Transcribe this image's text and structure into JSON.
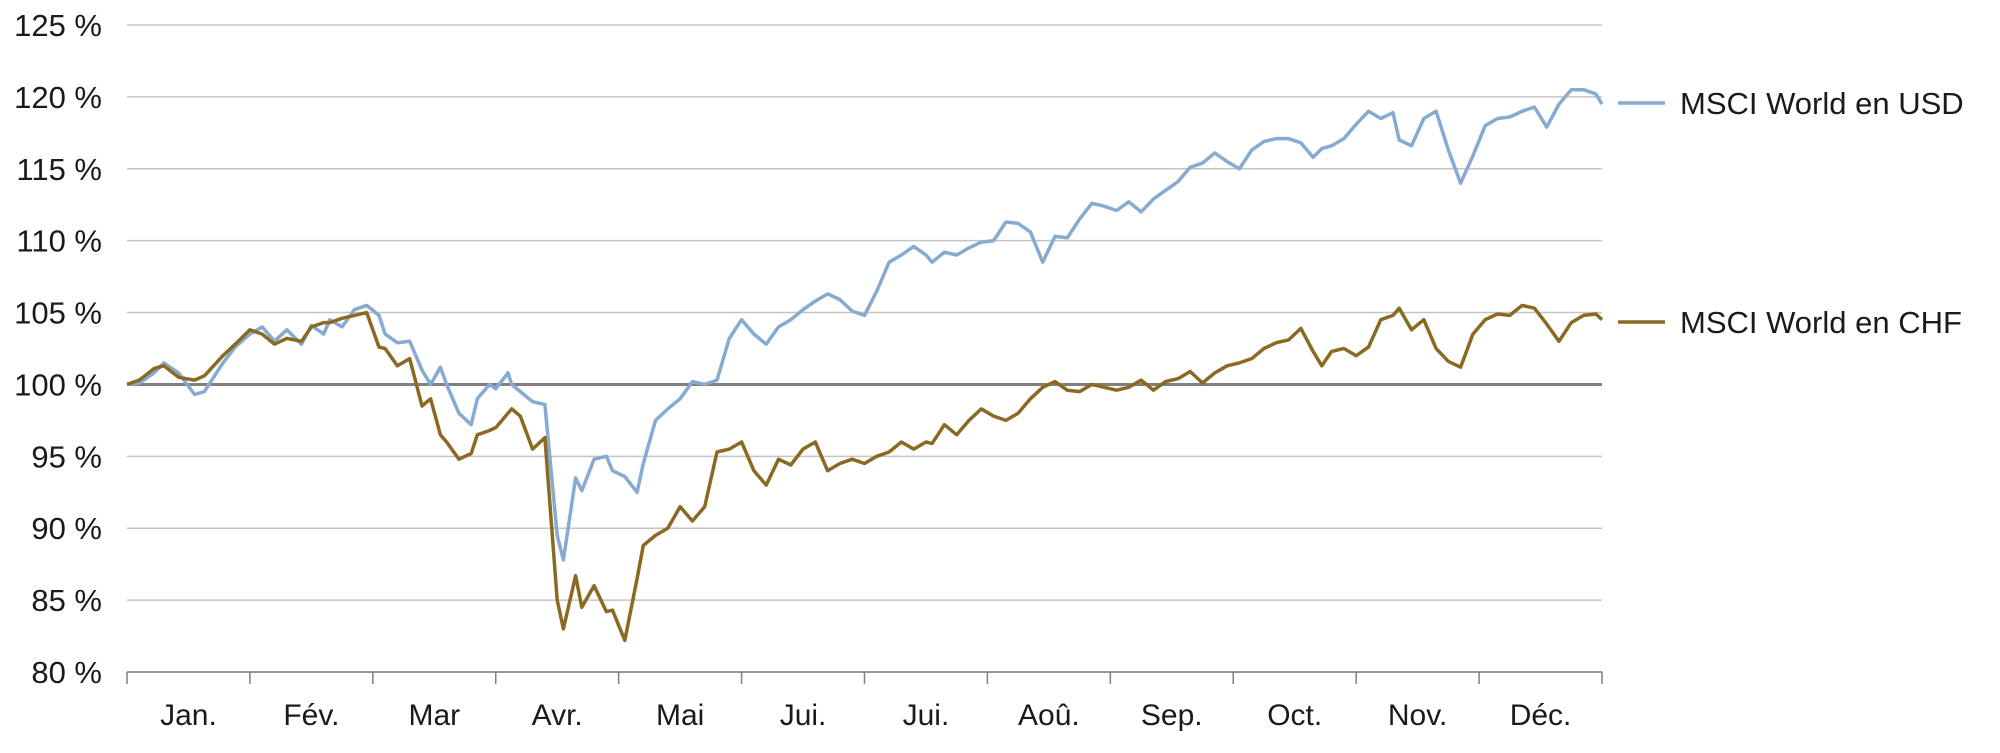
{
  "chart_data": {
    "type": "line",
    "title": "",
    "xlabel": "",
    "ylabel": "",
    "ylim": [
      80,
      125
    ],
    "y_ticks": [
      "80 %",
      "85 %",
      "90 %",
      "95 %",
      "100 %",
      "105 %",
      "110 %",
      "115 %",
      "120 %",
      "125 %"
    ],
    "y_tick_values": [
      80,
      85,
      90,
      95,
      100,
      105,
      110,
      115,
      120,
      125
    ],
    "baseline": 100,
    "grid": "horizontal",
    "legend_position": "right",
    "months": [
      "Jan.",
      "Fév.",
      "Mar",
      "Avr.",
      "Mai",
      "Jui.",
      "Jui.",
      "Aoû.",
      "Sep.",
      "Oct.",
      "Nov.",
      "Déc."
    ],
    "x_unit": "month index (0 = start of Jan., 12 = end of Déc.)",
    "series": [
      {
        "name": "MSCI World en USD",
        "color": "#86aad1",
        "x": [
          0,
          0.1,
          0.22,
          0.3,
          0.42,
          0.55,
          0.63,
          0.78,
          0.88,
          1.0,
          1.1,
          1.2,
          1.3,
          1.42,
          1.5,
          1.6,
          1.65,
          1.75,
          1.85,
          1.95,
          2.05,
          2.1,
          2.2,
          2.3,
          2.4,
          2.47,
          2.55,
          2.6,
          2.7,
          2.8,
          2.85,
          2.95,
          3.0,
          3.1,
          3.13,
          3.2,
          3.3,
          3.4,
          3.5,
          3.55,
          3.65,
          3.7,
          3.8,
          3.9,
          3.95,
          4.05,
          4.15,
          4.2,
          4.3,
          4.4,
          4.5,
          4.6,
          4.7,
          4.8,
          4.9,
          5.0,
          5.1,
          5.2,
          5.3,
          5.4,
          5.5,
          5.6,
          5.7,
          5.8,
          5.9,
          6.0,
          6.1,
          6.2,
          6.3,
          6.4,
          6.5,
          6.55,
          6.65,
          6.75,
          6.85,
          6.95,
          7.05,
          7.15,
          7.25,
          7.35,
          7.45,
          7.55,
          7.65,
          7.75,
          7.85,
          7.95,
          8.05,
          8.15,
          8.25,
          8.35,
          8.45,
          8.55,
          8.65,
          8.75,
          8.85,
          8.95,
          9.05,
          9.15,
          9.25,
          9.35,
          9.45,
          9.55,
          9.65,
          9.72,
          9.8,
          9.9,
          10.0,
          10.1,
          10.2,
          10.3,
          10.35,
          10.45,
          10.55,
          10.65,
          10.75,
          10.85,
          10.95,
          11.05,
          11.15,
          11.25,
          11.35,
          11.45,
          11.55,
          11.65,
          11.75,
          11.85,
          11.95,
          12.0
        ],
        "values": [
          100.0,
          100.1,
          100.8,
          101.5,
          100.8,
          99.3,
          99.5,
          101.5,
          102.6,
          103.5,
          104.0,
          103.0,
          103.8,
          102.8,
          104.1,
          103.5,
          104.5,
          104.0,
          105.2,
          105.5,
          104.8,
          103.5,
          102.9,
          103.0,
          101.0,
          100.0,
          101.2,
          100.0,
          98.0,
          97.2,
          99.0,
          100.0,
          99.7,
          100.8,
          100.0,
          99.5,
          98.8,
          98.6,
          89.5,
          87.8,
          93.5,
          92.6,
          94.8,
          95.0,
          94.0,
          93.6,
          92.5,
          94.5,
          97.5,
          98.3,
          99.0,
          100.2,
          100.0,
          100.3,
          103.2,
          104.5,
          103.5,
          102.8,
          104.0,
          104.5,
          105.2,
          105.8,
          106.3,
          105.9,
          105.1,
          104.8,
          106.5,
          108.5,
          109.0,
          109.6,
          109.0,
          108.5,
          109.2,
          109.0,
          109.5,
          109.9,
          110.0,
          111.3,
          111.2,
          110.6,
          108.5,
          110.3,
          110.2,
          111.5,
          112.6,
          112.4,
          112.1,
          112.7,
          112.0,
          112.9,
          113.5,
          114.1,
          115.1,
          115.4,
          116.1,
          115.5,
          115.0,
          116.3,
          116.9,
          117.1,
          117.1,
          116.8,
          115.8,
          116.4,
          116.6,
          117.1,
          118.1,
          119.0,
          118.5,
          118.9,
          117.0,
          116.6,
          118.5,
          119.0,
          116.3,
          114.0,
          115.9,
          118.0,
          118.5,
          118.6,
          119.0,
          119.3,
          117.9,
          119.5,
          120.5,
          120.5,
          120.2,
          119.5
        ],
        "note_sample_hint": ""
      },
      {
        "name": "MSCI World en CHF",
        "color": "#8a6a22",
        "x": [
          0,
          0.1,
          0.22,
          0.3,
          0.42,
          0.55,
          0.63,
          0.78,
          0.88,
          1.0,
          1.1,
          1.2,
          1.3,
          1.42,
          1.5,
          1.6,
          1.65,
          1.75,
          1.85,
          1.95,
          2.05,
          2.1,
          2.2,
          2.3,
          2.4,
          2.47,
          2.55,
          2.6,
          2.7,
          2.8,
          2.85,
          2.95,
          3.0,
          3.1,
          3.13,
          3.2,
          3.3,
          3.4,
          3.5,
          3.55,
          3.65,
          3.7,
          3.8,
          3.9,
          3.95,
          4.05,
          4.15,
          4.2,
          4.3,
          4.4,
          4.5,
          4.6,
          4.7,
          4.8,
          4.9,
          5.0,
          5.1,
          5.2,
          5.3,
          5.4,
          5.5,
          5.6,
          5.7,
          5.8,
          5.9,
          6.0,
          6.1,
          6.2,
          6.3,
          6.4,
          6.5,
          6.55,
          6.65,
          6.75,
          6.85,
          6.95,
          7.05,
          7.15,
          7.25,
          7.35,
          7.45,
          7.55,
          7.65,
          7.75,
          7.85,
          7.95,
          8.05,
          8.15,
          8.25,
          8.35,
          8.45,
          8.55,
          8.65,
          8.75,
          8.85,
          8.95,
          9.05,
          9.15,
          9.25,
          9.35,
          9.45,
          9.55,
          9.65,
          9.72,
          9.8,
          9.9,
          10.0,
          10.1,
          10.2,
          10.3,
          10.35,
          10.45,
          10.55,
          10.65,
          10.75,
          10.85,
          10.95,
          11.05,
          11.15,
          11.25,
          11.35,
          11.45,
          11.55,
          11.65,
          11.75,
          11.85,
          11.95,
          12.0
        ],
        "values": [
          100.0,
          100.3,
          101.1,
          101.3,
          100.5,
          100.3,
          100.6,
          102.0,
          102.8,
          103.8,
          103.5,
          102.8,
          103.2,
          103.0,
          104.0,
          104.3,
          104.3,
          104.6,
          104.8,
          105.0,
          102.6,
          102.5,
          101.3,
          101.8,
          98.5,
          99.0,
          96.5,
          96.0,
          94.8,
          95.2,
          96.5,
          96.8,
          97.0,
          98.0,
          98.3,
          97.8,
          95.5,
          96.3,
          85.0,
          83.0,
          86.7,
          84.5,
          86.0,
          84.2,
          84.3,
          82.2,
          86.5,
          88.8,
          89.5,
          90.0,
          91.5,
          90.5,
          91.5,
          95.3,
          95.5,
          96.0,
          94.0,
          93.0,
          94.8,
          94.4,
          95.5,
          96.0,
          94.0,
          94.5,
          94.8,
          94.5,
          95.0,
          95.3,
          96.0,
          95.5,
          96.0,
          95.9,
          97.2,
          96.5,
          97.5,
          98.3,
          97.8,
          97.5,
          98.0,
          99.0,
          99.8,
          100.2,
          99.6,
          99.5,
          100.0,
          99.8,
          99.6,
          99.8,
          100.3,
          99.6,
          100.2,
          100.4,
          100.9,
          100.1,
          100.8,
          101.3,
          101.5,
          101.8,
          102.5,
          102.9,
          103.1,
          103.9,
          102.3,
          101.3,
          102.3,
          102.5,
          102.0,
          102.6,
          104.5,
          104.8,
          105.3,
          103.8,
          104.5,
          102.5,
          101.6,
          101.2,
          103.5,
          104.5,
          104.9,
          104.8,
          105.5,
          105.3,
          104.2,
          103.0,
          104.3,
          104.8,
          104.9,
          104.5
        ],
        "note_sample_hint": ""
      }
    ]
  }
}
